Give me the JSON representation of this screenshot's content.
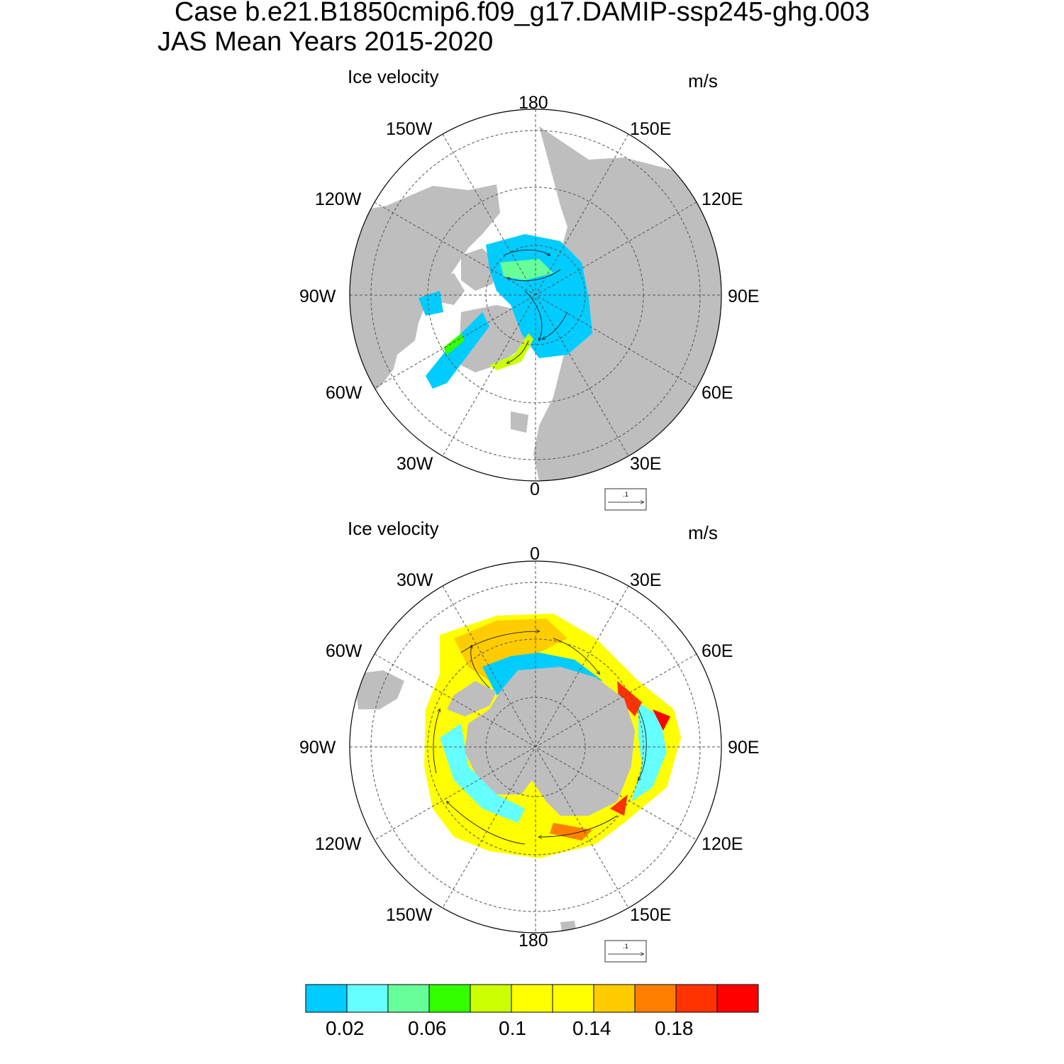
{
  "figure": {
    "title_line1": "Case b.e21.B1850cmip6.f09_g17.DAMIP-ssp245-ghg.003",
    "title_line2": "JAS Mean   Years 2015-2020"
  },
  "panels": [
    {
      "id": "north",
      "title": "Ice velocity",
      "units": "m/s",
      "ref_vector_label": ".1",
      "lon_labels": {
        "top": "180",
        "bottom": "0",
        "left": "90W",
        "right": "90E",
        "top_left": "150W",
        "top_right": "150E",
        "upper_left": "120W",
        "upper_right": "120E",
        "lower_left": "60W",
        "lower_right": "60E",
        "bottom_left": "30W",
        "bottom_right": "30E"
      }
    },
    {
      "id": "south",
      "title": "Ice velocity",
      "units": "m/s",
      "ref_vector_label": ".1",
      "lon_labels": {
        "top": "0",
        "bottom": "180",
        "left": "90W",
        "right": "90E",
        "top_left": "30W",
        "top_right": "30E",
        "upper_left": "60W",
        "upper_right": "60E",
        "lower_left": "120W",
        "lower_right": "120E",
        "bottom_left": "150W",
        "bottom_right": "150E"
      }
    }
  ],
  "colorbar": {
    "colors": [
      "#00ccff",
      "#66ffff",
      "#66ff99",
      "#33ff00",
      "#ccff00",
      "#ffff00",
      "#ffff00",
      "#ffcc00",
      "#ff8000",
      "#ff3300",
      "#ff0000"
    ],
    "tick_labels": [
      "0.02",
      "0.06",
      "0.1",
      "0.14",
      "0.18"
    ]
  },
  "colors": {
    "land": "#bebebe",
    "grid": "#555555",
    "outline": "#000000"
  }
}
